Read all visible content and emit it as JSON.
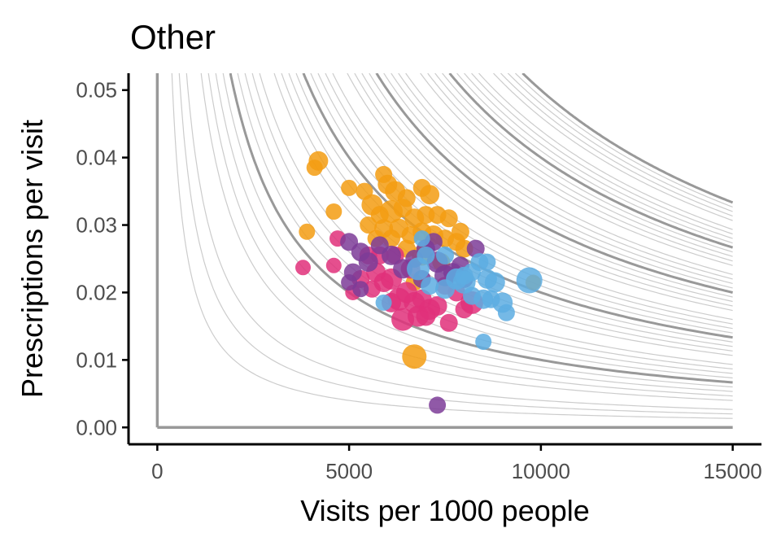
{
  "chart_data": {
    "type": "scatter",
    "title": "Other",
    "xlabel": "Visits per 1000 people",
    "ylabel": "Prescriptions per visit",
    "xlim": [
      -750,
      15750
    ],
    "ylim": [
      -0.0025,
      0.0525
    ],
    "x_ticks": [
      0,
      5000,
      10000,
      15000
    ],
    "x_tick_labels": [
      "0",
      "5000",
      "10000",
      "15000"
    ],
    "y_ticks": [
      0.0,
      0.01,
      0.02,
      0.03,
      0.04,
      0.05
    ],
    "y_tick_labels": [
      "0.00",
      "0.01",
      "0.02",
      "0.03",
      "0.04",
      "0.05"
    ],
    "grid": false,
    "iso_curves": {
      "description": "hyperbolic contours of constant visits x prescriptions-per-visit",
      "products_thin": [
        20,
        30,
        40,
        60,
        70,
        80,
        90,
        110,
        120,
        130,
        140,
        160,
        170,
        180,
        190,
        210,
        220,
        230,
        240,
        260,
        270,
        280,
        290,
        310,
        320,
        330,
        340,
        360,
        370,
        380,
        390,
        410,
        420,
        430,
        440,
        460,
        470,
        480,
        490
      ],
      "products_thick": [
        100,
        200,
        300,
        400,
        500
      ],
      "color_thin": "#cccccc",
      "color_thick": "#999999"
    },
    "colors": {
      "orange": "#F39C12",
      "magenta": "#E0307A",
      "purple": "#7D3C98",
      "blue": "#5DADE2"
    },
    "series": [
      {
        "color": "orange",
        "points": [
          [
            4200,
            0.0395,
            1.2
          ],
          [
            4100,
            0.0385,
            0.8
          ],
          [
            5000,
            0.0355,
            0.8
          ],
          [
            5400,
            0.035,
            0.9
          ],
          [
            5900,
            0.0375,
            0.9
          ],
          [
            6000,
            0.036,
            1.2
          ],
          [
            6200,
            0.035,
            1.3
          ],
          [
            6500,
            0.034,
            1.0
          ],
          [
            6900,
            0.0355,
            1.0
          ],
          [
            7100,
            0.0345,
            1.2
          ],
          [
            5600,
            0.033,
            1.4
          ],
          [
            5800,
            0.0315,
            1.0
          ],
          [
            6100,
            0.032,
            1.6
          ],
          [
            6400,
            0.0325,
            1.1
          ],
          [
            6700,
            0.031,
            1.2
          ],
          [
            7000,
            0.0315,
            1.0
          ],
          [
            7300,
            0.0315,
            1.0
          ],
          [
            7600,
            0.031,
            1.0
          ],
          [
            7900,
            0.029,
            1.0
          ],
          [
            5500,
            0.03,
            0.9
          ],
          [
            5900,
            0.0295,
            1.1
          ],
          [
            6300,
            0.0295,
            1.2
          ],
          [
            6600,
            0.0285,
            1.0
          ],
          [
            6900,
            0.029,
            1.1
          ],
          [
            7200,
            0.0285,
            1.2
          ],
          [
            7500,
            0.028,
            1.0
          ],
          [
            7800,
            0.0275,
            1.0
          ],
          [
            8000,
            0.0265,
            1.0
          ],
          [
            5700,
            0.028,
            0.9
          ],
          [
            6100,
            0.028,
            1.0
          ],
          [
            4600,
            0.032,
            0.8
          ],
          [
            3900,
            0.029,
            0.8
          ],
          [
            6500,
            0.0265,
            1.0
          ],
          [
            6900,
            0.0255,
            1.3
          ],
          [
            6700,
            0.0215,
            0.9
          ],
          [
            6700,
            0.0105,
            1.8
          ],
          [
            9800,
            0.0215,
            0.7
          ],
          [
            7400,
            0.0245,
            1.0
          ]
        ]
      },
      {
        "color": "magenta",
        "points": [
          [
            3800,
            0.0237,
            0.7
          ],
          [
            4600,
            0.024,
            0.7
          ],
          [
            4700,
            0.028,
            0.8
          ],
          [
            5100,
            0.02,
            0.7
          ],
          [
            5300,
            0.022,
            1.0
          ],
          [
            5500,
            0.0255,
            1.0
          ],
          [
            5700,
            0.023,
            1.2
          ],
          [
            5900,
            0.0215,
            1.2
          ],
          [
            6100,
            0.022,
            1.4
          ],
          [
            6300,
            0.019,
            1.6
          ],
          [
            6500,
            0.02,
            1.4
          ],
          [
            6700,
            0.0185,
            1.4
          ],
          [
            6900,
            0.019,
            1.2
          ],
          [
            7100,
            0.0175,
            1.4
          ],
          [
            7300,
            0.018,
            1.2
          ],
          [
            6100,
            0.0185,
            1.2
          ],
          [
            6400,
            0.016,
            1.6
          ],
          [
            6800,
            0.0165,
            1.4
          ],
          [
            7000,
            0.0165,
            1.2
          ],
          [
            7600,
            0.0155,
            1.0
          ],
          [
            8000,
            0.0175,
            1.0
          ],
          [
            8200,
            0.0185,
            1.6
          ],
          [
            7800,
            0.02,
            1.0
          ],
          [
            7500,
            0.021,
            1.0
          ],
          [
            6600,
            0.0235,
            1.2
          ],
          [
            5800,
            0.0255,
            1.0
          ],
          [
            6200,
            0.0255,
            1.0
          ],
          [
            5600,
            0.0205,
            0.9
          ]
        ]
      },
      {
        "color": "purple",
        "points": [
          [
            5000,
            0.0275,
            1.0
          ],
          [
            5300,
            0.026,
            1.1
          ],
          [
            5100,
            0.023,
            1.0
          ],
          [
            5000,
            0.0215,
            0.8
          ],
          [
            5300,
            0.0205,
            0.8
          ],
          [
            5500,
            0.0245,
            1.2
          ],
          [
            5800,
            0.027,
            1.0
          ],
          [
            6100,
            0.0255,
            1.2
          ],
          [
            6400,
            0.0235,
            1.2
          ],
          [
            6700,
            0.025,
            1.0
          ],
          [
            7000,
            0.0265,
            1.1
          ],
          [
            7300,
            0.0245,
            1.4
          ],
          [
            7500,
            0.0225,
            1.4
          ],
          [
            7700,
            0.023,
            1.1
          ],
          [
            7900,
            0.024,
            1.0
          ],
          [
            8000,
            0.022,
            1.0
          ],
          [
            8300,
            0.0265,
            1.0
          ],
          [
            7200,
            0.0275,
            1.0
          ],
          [
            6900,
            0.022,
            1.0
          ],
          [
            7300,
            0.0033,
            0.9
          ]
        ]
      },
      {
        "color": "blue",
        "points": [
          [
            6800,
            0.0235,
            1.6
          ],
          [
            7100,
            0.021,
            1.0
          ],
          [
            7500,
            0.0205,
            1.2
          ],
          [
            7800,
            0.022,
            1.4
          ],
          [
            8000,
            0.0215,
            1.6
          ],
          [
            8200,
            0.023,
            1.0
          ],
          [
            8400,
            0.0245,
            1.0
          ],
          [
            8600,
            0.022,
            1.2
          ],
          [
            8800,
            0.0215,
            1.3
          ],
          [
            8500,
            0.019,
            1.2
          ],
          [
            8700,
            0.019,
            1.0
          ],
          [
            9000,
            0.0185,
            1.3
          ],
          [
            9100,
            0.017,
            0.9
          ],
          [
            8200,
            0.0195,
            1.0
          ],
          [
            8000,
            0.0225,
            1.0
          ],
          [
            7000,
            0.0255,
            1.0
          ],
          [
            6900,
            0.028,
            0.8
          ],
          [
            5900,
            0.0185,
            0.8
          ],
          [
            8500,
            0.0127,
            0.8
          ],
          [
            9700,
            0.0218,
            2.0
          ],
          [
            8600,
            0.0245,
            0.9
          ],
          [
            7500,
            0.0255,
            1.0
          ]
        ]
      }
    ]
  }
}
